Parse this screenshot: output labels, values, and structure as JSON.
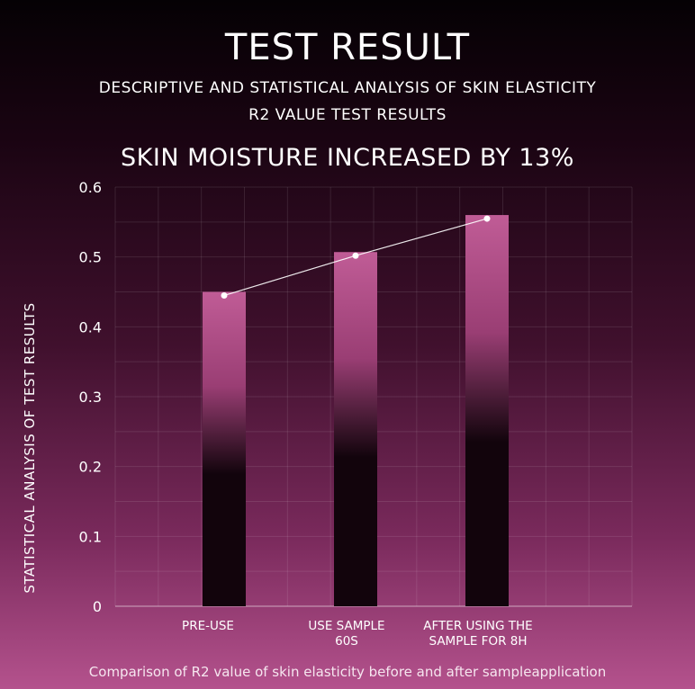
{
  "title": "TEST RESULT",
  "subtitle_1": "DESCRIPTIVE AND STATISTICAL ANALYSIS OF SKIN ELASTICITY",
  "subtitle_2": "R2 VALUE TEST RESULTS",
  "headline": "SKIN MOISTURE INCREASED BY 13%",
  "caption": "Comparison of R2 value of skin elasticity before and after sampleapplication",
  "chart_data": {
    "type": "bar",
    "categories": [
      [
        "PRE-USE"
      ],
      [
        "USE SAMPLE",
        "60S"
      ],
      [
        "AFTER USING THE",
        "SAMPLE FOR 8H"
      ]
    ],
    "values": [
      0.45,
      0.507,
      0.56
    ],
    "line_overlay": true,
    "ylabel": "STATISTICAL ANALYSIS OF TEST RESULTS",
    "ylim": [
      0,
      0.6
    ],
    "yticks": [
      "0",
      "0.1",
      "0.2",
      "0.3",
      "0.4",
      "0.5",
      "0.6"
    ],
    "grid": true,
    "colors": {
      "bar_top": "#c05c96",
      "bar_mid": "#9a3e74",
      "bar_bottom": "#12040c",
      "line": "#ffffff",
      "grid": "#ffffff"
    }
  }
}
